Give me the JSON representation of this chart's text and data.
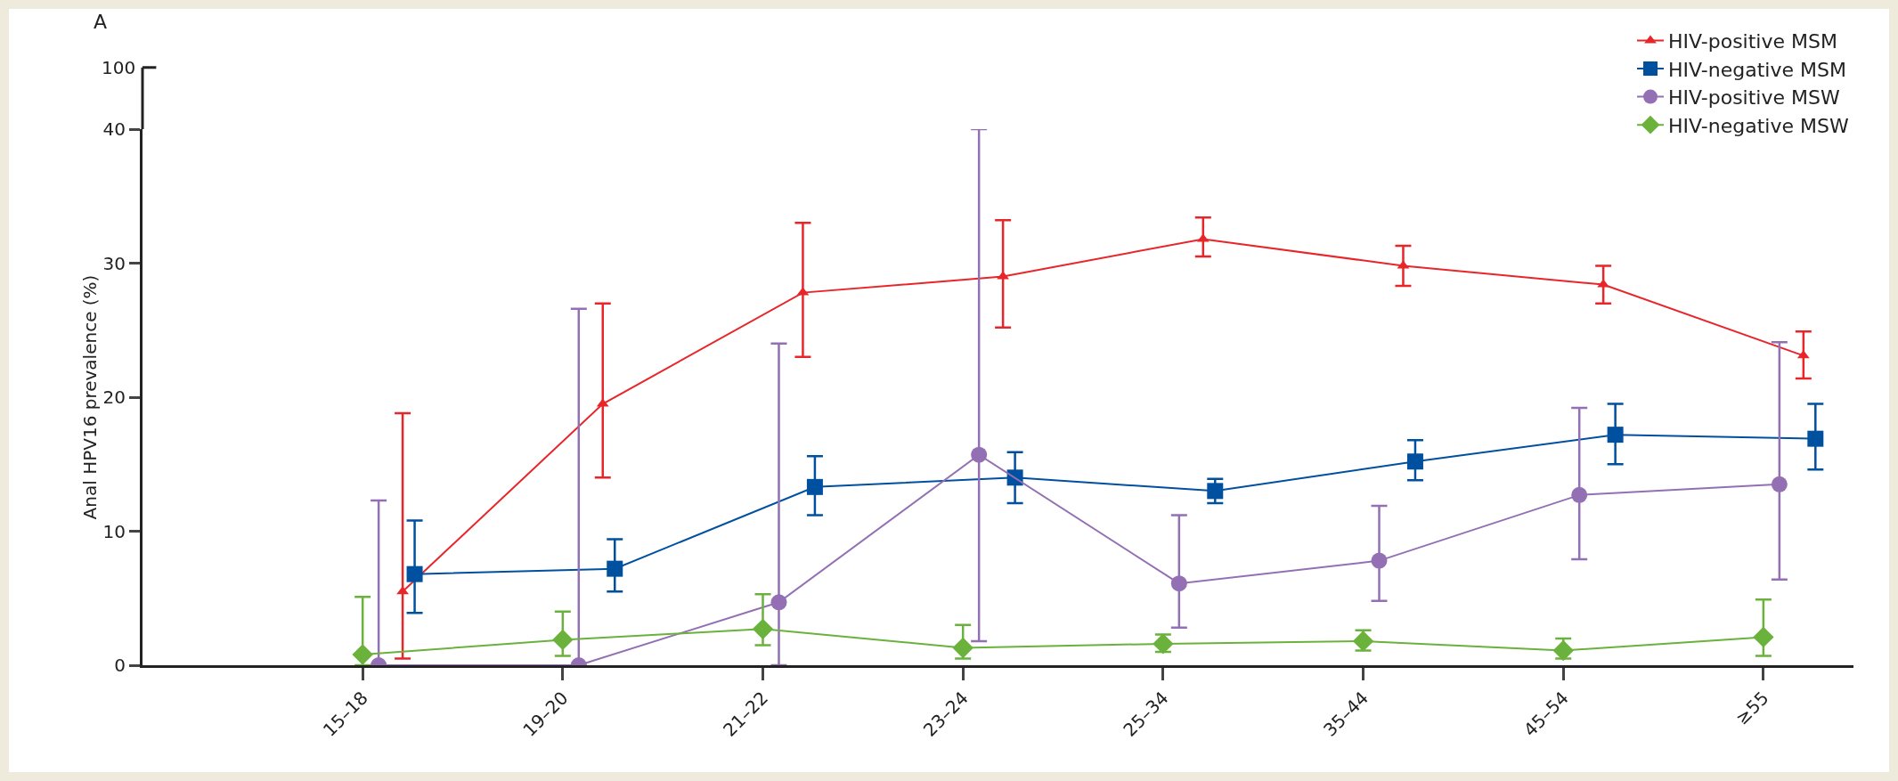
{
  "chart_data": {
    "type": "line",
    "ylabel": "Anal HPV16 prevalence (%)",
    "annotations": [
      "A",
      "100"
    ],
    "categories": [
      "15–18",
      "19–20",
      "21–22",
      "23–24",
      "25–34",
      "35–44",
      "45–54",
      "≥55"
    ],
    "ylim": [
      0,
      40
    ],
    "yticks": [
      0,
      10,
      20,
      30,
      40
    ],
    "grid": false,
    "legend": "top right",
    "line_style": "solid",
    "series": [
      {
        "name": "HIV-positive MSM",
        "color": "#e8262a",
        "marker": "triangle",
        "values": [
          5.5,
          19.5,
          27.8,
          29,
          31.8,
          29.8,
          28.4,
          23.1
        ],
        "errors": [
          [
            0.5,
            18.8
          ],
          [
            14,
            27
          ],
          [
            23,
            33
          ],
          [
            25.2,
            33.2
          ],
          [
            30.5,
            33.4
          ],
          [
            28.3,
            31.3
          ],
          [
            27,
            29.8
          ],
          [
            21.4,
            24.9
          ]
        ]
      },
      {
        "name": "HIV-negative MSM",
        "color": "#0050a0",
        "marker": "square",
        "values": [
          6.8,
          7.2,
          13.3,
          14,
          13,
          15.2,
          17.2,
          16.9
        ],
        "errors": [
          [
            3.9,
            10.8
          ],
          [
            5.5,
            9.4
          ],
          [
            11.2,
            15.6
          ],
          [
            12.1,
            15.9
          ],
          [
            12.1,
            13.9
          ],
          [
            13.8,
            16.8
          ],
          [
            15,
            19.5
          ],
          [
            14.6,
            19.5
          ]
        ]
      },
      {
        "name": "HIV-positive MSW",
        "color": "#9370b4",
        "marker": "circle",
        "values": [
          0,
          0,
          4.7,
          15.7,
          6.1,
          7.8,
          12.7,
          13.5
        ],
        "errors": [
          [
            0,
            12.3
          ],
          [
            0,
            26.6
          ],
          [
            0,
            24
          ],
          [
            1.8,
            40
          ],
          [
            2.8,
            11.2
          ],
          [
            4.8,
            11.9
          ],
          [
            7.9,
            19.2
          ],
          [
            6.4,
            24.1
          ]
        ]
      },
      {
        "name": "HIV-negative MSW",
        "color": "#6ab23c",
        "marker": "diamond",
        "values": [
          0.8,
          1.9,
          2.7,
          1.3,
          1.6,
          1.8,
          1.1,
          2.1
        ],
        "errors": [
          [
            0,
            5.1
          ],
          [
            0.7,
            4
          ],
          [
            1.5,
            5.3
          ],
          [
            0.5,
            3
          ],
          [
            1,
            2.3
          ],
          [
            1.1,
            2.6
          ],
          [
            0.5,
            2
          ],
          [
            0.7,
            4.9
          ]
        ]
      }
    ]
  }
}
